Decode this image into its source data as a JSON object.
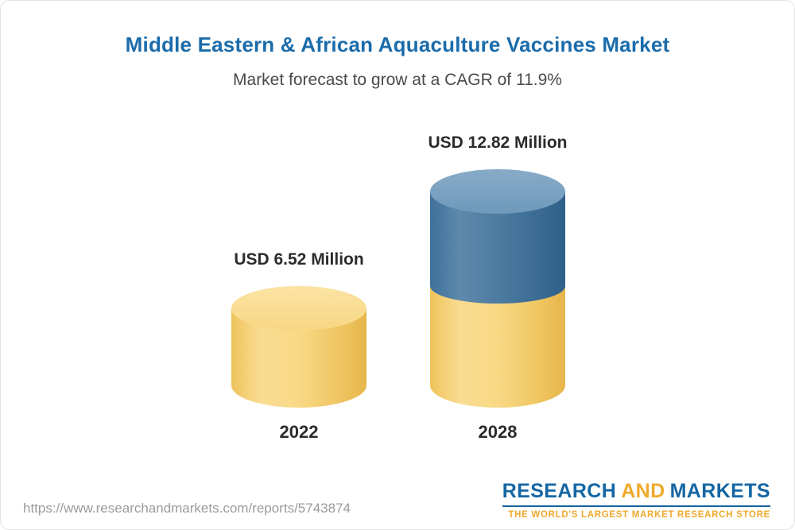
{
  "chart_data": {
    "type": "bar",
    "style": "3d-cylinder",
    "title": "Middle Eastern & African Aquaculture Vaccines Market",
    "subtitle": "Market forecast to grow at a CAGR of 11.9%",
    "unit": "USD Million",
    "categories": [
      "2022",
      "2028"
    ],
    "values": [
      6.52,
      12.82
    ],
    "value_labels": [
      "USD 6.52 Million",
      "USD 12.82 Million"
    ],
    "legend": false,
    "grid": false,
    "colors": {
      "base_segment": "#f6cf6d",
      "growth_segment": "#3f6f99",
      "title": "#1b6cab"
    },
    "bars": [
      {
        "category": "2022",
        "label": "USD 6.52 Million",
        "total": 6.52,
        "segments": [
          {
            "name": "base",
            "value": 6.52,
            "color": "#f6cf6d"
          }
        ]
      },
      {
        "category": "2028",
        "label": "USD 12.82 Million",
        "total": 12.82,
        "segments": [
          {
            "name": "base",
            "value": 6.52,
            "color": "#f6cf6d"
          },
          {
            "name": "growth",
            "value": 6.3,
            "color": "#3f6f99"
          }
        ]
      }
    ],
    "notes": "2028 cylinder shows the 2022-equivalent base in yellow with the growth portion stacked in blue"
  },
  "footer": {
    "url": "https://www.researchandmarkets.com/reports/5743874",
    "logo": {
      "research": "RESEARCH",
      "and": "AND",
      "markets": "MARKETS",
      "tagline": "THE WORLD'S LARGEST MARKET RESEARCH STORE"
    }
  }
}
